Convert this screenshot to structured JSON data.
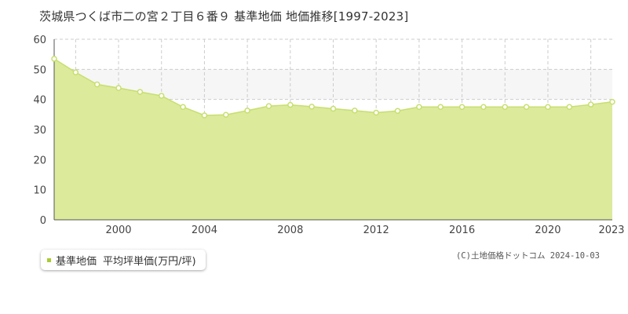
{
  "title": "茨城県つくば市二の宮２丁目６番９ 基準地価 地価推移[1997-2023]",
  "legend": {
    "series_label": "基準地価",
    "unit_label": "平均坪単価(万円/坪)"
  },
  "copyright": "(C)土地価格ドットコム 2024-10-03",
  "colors": {
    "fill": "#dcea9c",
    "line": "#c7df6e",
    "point_fill": "#ffffff",
    "point_stroke": "#c7df6e",
    "band": "#f6f6f6",
    "grid": "#cccccc",
    "axis": "#555555",
    "legend_swatch": "#a8cc33"
  },
  "chart_data": {
    "type": "area",
    "x": [
      1997,
      1998,
      1999,
      2000,
      2001,
      2002,
      2003,
      2004,
      2005,
      2006,
      2007,
      2008,
      2009,
      2010,
      2011,
      2012,
      2013,
      2014,
      2015,
      2016,
      2017,
      2018,
      2019,
      2020,
      2021,
      2022,
      2023
    ],
    "values": [
      53.5,
      49,
      45,
      43.8,
      42.5,
      41.2,
      37.5,
      34.7,
      34.9,
      36.3,
      37.8,
      38.2,
      37.6,
      36.9,
      36.3,
      35.6,
      36.2,
      37.5,
      37.5,
      37.5,
      37.5,
      37.5,
      37.5,
      37.5,
      37.5,
      38.3,
      39.2
    ],
    "ylim": [
      0,
      60
    ],
    "yticks": [
      0,
      10,
      20,
      30,
      40,
      50,
      60
    ],
    "xlim": [
      1997,
      2023
    ],
    "xticks": [
      2000,
      2004,
      2008,
      2012,
      2016,
      2020,
      2023
    ],
    "band": [
      40,
      50
    ],
    "grid": true
  }
}
